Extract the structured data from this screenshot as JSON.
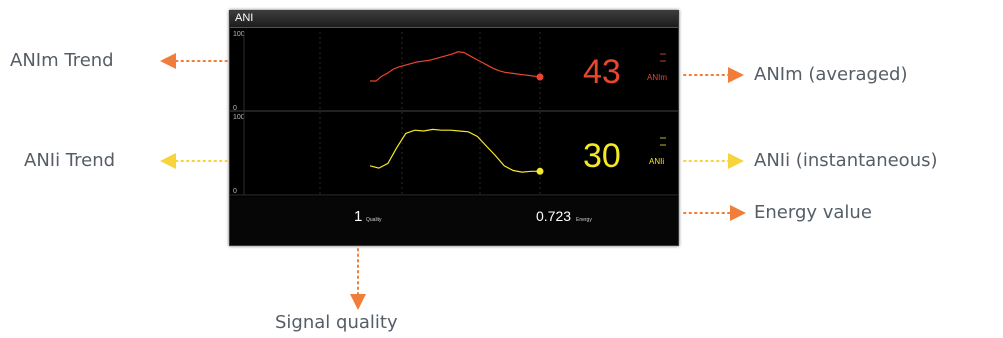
{
  "monitor": {
    "title": "ANI",
    "anim": {
      "value": "43",
      "unit": "ANIm",
      "color": "#e8462d",
      "axis_max": "100",
      "axis_min": "0",
      "trend": [
        38,
        38,
        44,
        48,
        53,
        56,
        58,
        60,
        62,
        63,
        64,
        66,
        68,
        70,
        72,
        75,
        74,
        70,
        66,
        62,
        58,
        54,
        51,
        49,
        48,
        47,
        46,
        45,
        44,
        43
      ]
    },
    "anii": {
      "value": "30",
      "unit": "ANIi",
      "color": "#f4e925",
      "axis_max": "100",
      "axis_min": "0",
      "trend": [
        37,
        34,
        40,
        60,
        78,
        82,
        81,
        83,
        82,
        82,
        81,
        80,
        74,
        62,
        50,
        37,
        31,
        29,
        30,
        30
      ]
    },
    "quality": {
      "value": "1",
      "label": "Quality"
    },
    "energy": {
      "value": "0.723",
      "label": "Energy"
    }
  },
  "callouts": {
    "anim_trend": "ANIm Trend",
    "anii_trend": "ANIi Trend",
    "anim_averaged": "ANIm (averaged)",
    "anii_instantaneous": "ANIi (instantaneous)",
    "energy_value": "Energy value",
    "signal_quality": "Signal quality"
  },
  "colors": {
    "orange_arrow": "#f07e3a",
    "yellow_arrow": "#f9d33b",
    "callout_text": "#555e66"
  }
}
